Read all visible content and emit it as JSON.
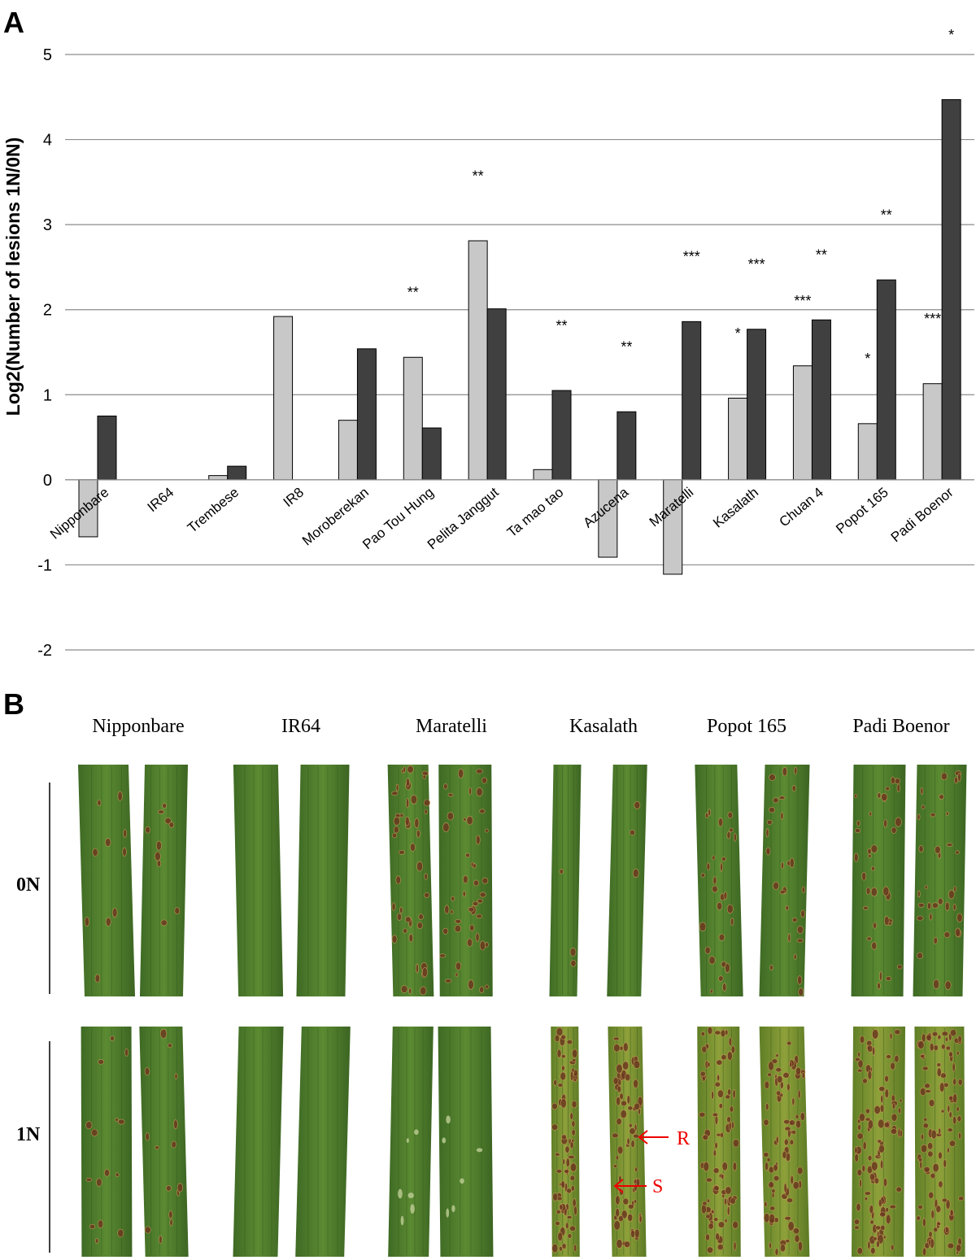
{
  "figure": {
    "panel_a": "A",
    "panel_b": "B"
  },
  "chart_data": {
    "type": "bar",
    "ylabel": "Log2(Number of lesions 1N/0N)",
    "categories": [
      "Nipponbare",
      "IR64",
      "Trembese",
      "IR8",
      "Moroberekan",
      "Pao Tou Hung",
      "Pelita Janggut",
      "Ta mao tao",
      "Azucena",
      "Maratelli",
      "Kasalath",
      "Chuan 4",
      "Popot 165",
      "Padi Boenor"
    ],
    "series": [
      {
        "color": "#c8c8c8",
        "values": [
          -0.67,
          0,
          0.05,
          1.92,
          0.7,
          1.44,
          2.81,
          0.12,
          -0.91,
          -1.11,
          0.96,
          1.34,
          0.66,
          1.13
        ]
      },
      {
        "color": "#404040",
        "values": [
          0.75,
          0,
          0.16,
          0,
          1.54,
          0.61,
          2.01,
          1.05,
          0.8,
          1.86,
          1.77,
          1.88,
          2.35,
          4.47
        ]
      }
    ],
    "ylim": [
      -2,
      5
    ],
    "yticks": [
      -2,
      -1,
      0,
      1,
      2,
      3,
      4,
      5
    ],
    "grid": true,
    "annotations": [
      {
        "text": "**",
        "category": 5,
        "series": 0
      },
      {
        "text": "**",
        "category": 6,
        "series": 0
      },
      {
        "text": "**",
        "category": 7,
        "series": 1
      },
      {
        "text": "**",
        "category": 8,
        "series": 1
      },
      {
        "text": "***",
        "category": 9,
        "series": 1
      },
      {
        "text": "*",
        "category": 10,
        "series": 0
      },
      {
        "text": "***",
        "category": 10,
        "series": 1
      },
      {
        "text": "***",
        "category": 11,
        "series": 0
      },
      {
        "text": "**",
        "category": 11,
        "series": 1
      },
      {
        "text": "*",
        "category": 12,
        "series": 0
      },
      {
        "text": "**",
        "category": 12,
        "series": 1
      },
      {
        "text": "***",
        "category": 13,
        "series": 0
      },
      {
        "text": "*",
        "category": 13,
        "series": 1
      }
    ]
  },
  "photos": {
    "columns": [
      "Nipponbare",
      "IR64",
      "Maratelli",
      "Kasalath",
      "Popot 165",
      "Padi Boenor"
    ],
    "rows": [
      "0N",
      "1N"
    ],
    "arrows": [
      "R",
      "S"
    ]
  }
}
